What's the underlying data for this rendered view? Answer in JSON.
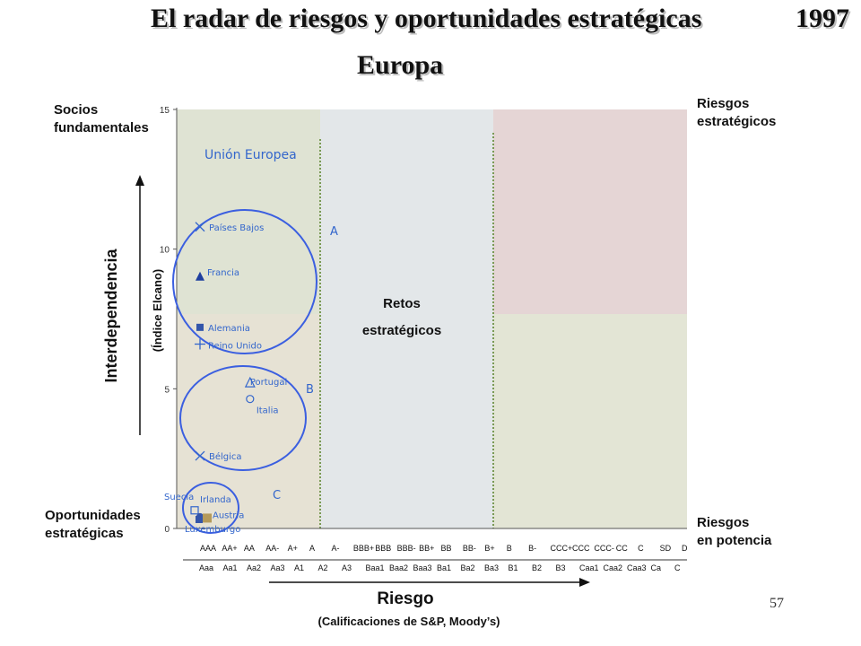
{
  "header": {
    "title": "El radar de riesgos y oportunidades estratégicas",
    "year": "1997",
    "subtitle": "Europa"
  },
  "corners": {
    "top_left": [
      "Socios",
      "fundamentales"
    ],
    "top_right": [
      "Riesgos",
      "estratégicos"
    ],
    "bottom_left": [
      "Oportunidades",
      "estratégicas"
    ],
    "bottom_right": [
      "Riesgos",
      "en potencia"
    ]
  },
  "slide_number": "57",
  "chart_data": {
    "type": "scatter",
    "ylabel_outer": "Interdependencia",
    "ylabel": "(Índice Elcano)",
    "xlabel": "Riesgo",
    "xlabel_sub": "(Calificaciones de S&P, Moody’s)",
    "ylim": [
      0,
      15
    ],
    "yticks": [
      0,
      5,
      10,
      15
    ],
    "x_categories_sp": [
      "AAA",
      "AA+",
      "AA",
      "AA-",
      "A+",
      "A",
      "A-",
      "BBB+",
      "BBB",
      "BBB-",
      "BB+",
      "BB",
      "BB-",
      "B+",
      "B",
      "B-",
      "CCC+",
      "CCC",
      "CCC-",
      "CC",
      "C",
      "SD",
      "D"
    ],
    "x_categories_moodys": [
      "Aaa",
      "Aa1",
      "Aa2",
      "Aa3",
      "A1",
      "A2",
      "A3",
      "Baa1",
      "Baa2",
      "Baa3",
      "Ba1",
      "Ba2",
      "Ba3",
      "B1",
      "B2",
      "B3",
      "Caa1",
      "Caa2",
      "Caa3",
      "Ca",
      "C"
    ],
    "region_label": "Unión Europea",
    "center_label": [
      "Retos",
      "estratégicos"
    ],
    "group_labels": [
      "A",
      "B",
      "C"
    ],
    "points": [
      {
        "name": "Países Bajos",
        "x": "AAA",
        "y": 10.8,
        "marker": "x"
      },
      {
        "name": "Francia",
        "x": "AAA",
        "y": 9.0,
        "marker": "triangle"
      },
      {
        "name": "Alemania",
        "x": "AAA",
        "y": 7.2,
        "marker": "square"
      },
      {
        "name": "Reino Unido",
        "x": "AAA",
        "y": 6.6,
        "marker": "plus"
      },
      {
        "name": "Portugal",
        "x": "AA",
        "y": 5.2,
        "marker": "triangle-open"
      },
      {
        "name": "Italia",
        "x": "AA",
        "y": 4.7,
        "marker": "circle-open"
      },
      {
        "name": "Bélgica",
        "x": "AAA",
        "y": 2.6,
        "marker": "x"
      },
      {
        "name": "Suecia",
        "x": "AAA",
        "y": 0.65,
        "marker": "square-open"
      },
      {
        "name": "Irlanda",
        "x": "AAA",
        "y": 0.55,
        "marker": "circle"
      },
      {
        "name": "Austria",
        "x": "AAA",
        "y": 0.5,
        "marker": "square-brown"
      },
      {
        "name": "Luxemburgo",
        "x": "AAA",
        "y": 0.45,
        "marker": "square"
      }
    ]
  }
}
